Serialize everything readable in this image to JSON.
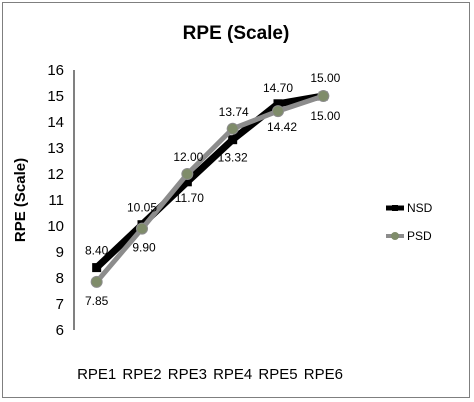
{
  "chart_data": {
    "type": "line",
    "title": "RPE (Scale)",
    "ylabel": "RPE (Scale)",
    "xlabel": "",
    "categories": [
      "RPE1",
      "RPE2",
      "RPE3",
      "RPE4",
      "RPE5",
      "RPE6"
    ],
    "ylim": [
      6,
      16
    ],
    "yticks": [
      6,
      7,
      8,
      9,
      10,
      11,
      12,
      13,
      14,
      15,
      16
    ],
    "grid": false,
    "legend_position": "right",
    "series": [
      {
        "name": "NSD",
        "color": "#000000",
        "values": [
          8.4,
          10.05,
          11.7,
          13.32,
          14.7,
          15.0
        ],
        "labels": [
          "8.40",
          "10.05",
          "11.70",
          "13.32",
          "14.70",
          "15.00"
        ]
      },
      {
        "name": "PSD",
        "color": "#8c8c8c",
        "marker_color": "#7f8c6a",
        "values": [
          7.85,
          9.9,
          12.0,
          13.74,
          14.42,
          15.0
        ],
        "labels": [
          "7.85",
          "9.90",
          "12.00",
          "13.74",
          "14.42",
          "15.00"
        ]
      }
    ]
  }
}
